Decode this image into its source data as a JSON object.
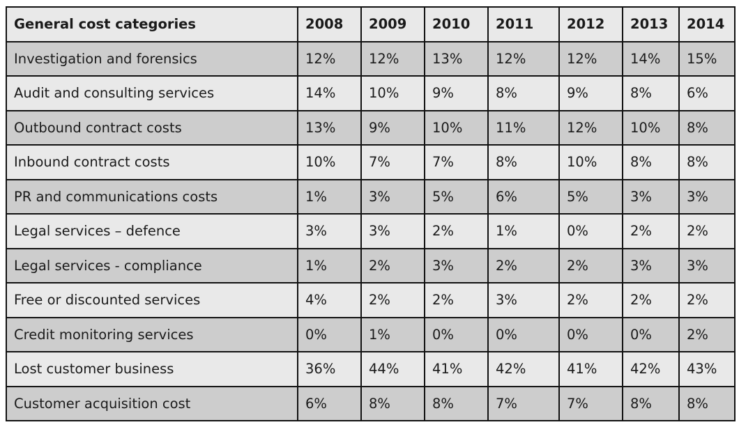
{
  "chart_data": {
    "type": "table",
    "header": [
      "General cost categories",
      "2008",
      "2009",
      "2010",
      "2011",
      "2012",
      "2013",
      "2014"
    ],
    "rows": [
      [
        "Investigation and forensics",
        "12%",
        "12%",
        "13%",
        "12%",
        "12%",
        "14%",
        "15%"
      ],
      [
        "Audit and consulting services",
        "14%",
        "10%",
        "9%",
        "8%",
        "9%",
        "8%",
        "6%"
      ],
      [
        "Outbound contract costs",
        "13%",
        "9%",
        "10%",
        "11%",
        "12%",
        "10%",
        "8%"
      ],
      [
        "Inbound contract costs",
        "10%",
        "7%",
        "7%",
        "8%",
        "10%",
        "8%",
        "8%"
      ],
      [
        "PR and communications costs",
        "1%",
        "3%",
        "5%",
        "6%",
        "5%",
        "3%",
        "3%"
      ],
      [
        "Legal services – defence",
        "3%",
        "3%",
        "2%",
        "1%",
        "0%",
        "2%",
        "2%"
      ],
      [
        "Legal services  - compliance",
        "1%",
        "2%",
        "3%",
        "2%",
        "2%",
        "3%",
        "3%"
      ],
      [
        "Free or discounted services",
        "4%",
        "2%",
        "2%",
        "3%",
        "2%",
        "2%",
        "2%"
      ],
      [
        "Credit monitoring services",
        "0%",
        "1%",
        "0%",
        "0%",
        "0%",
        "0%",
        "2%"
      ],
      [
        "Lost customer business",
        "36%",
        "44%",
        "41%",
        "42%",
        "41%",
        "42%",
        "43%"
      ],
      [
        "Customer acquisition cost",
        "6%",
        "8%",
        "8%",
        "7%",
        "7%",
        "8%",
        "8%"
      ]
    ],
    "colors": {
      "header_bg": "#e9e9e9",
      "shaded_row_bg": "#cdcdcd",
      "light_row_bg": "#e9e9e9",
      "border": "#111111"
    }
  }
}
